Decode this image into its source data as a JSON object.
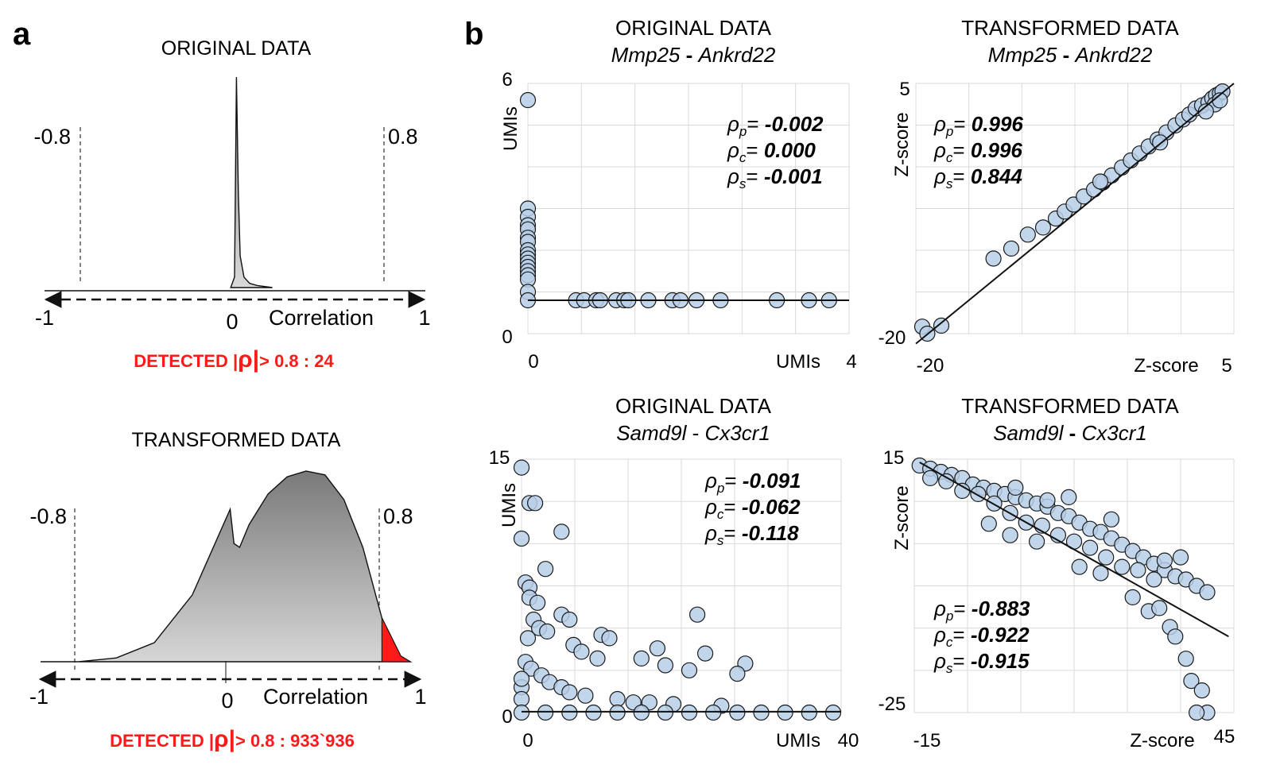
{
  "panel_letters": {
    "a": "a",
    "b": "b"
  },
  "colors": {
    "fill_dark": "#7a7a7a",
    "fill_light": "#d4d4d4",
    "highlight": "#ff1a1a",
    "point": "#b7cfe8",
    "point_stroke": "#1a1a1a",
    "grid": "#d9d9d9"
  },
  "panel_a": {
    "original": {
      "title": "ORIGINAL DATA",
      "neg_threshold": "-0.8",
      "pos_threshold": "0.8",
      "axis_min": "-1",
      "axis_zero": "0",
      "axis_label": "Correlation",
      "axis_max": "1",
      "detected": {
        "prefix": "DETECTED |",
        "rho": "ρ",
        "bar": "|",
        "suffix": "> 0.8 : 24"
      }
    },
    "transformed": {
      "title": "TRANSFORMED DATA",
      "neg_threshold": "-0.8",
      "pos_threshold": "0.8",
      "axis_min": "-1",
      "axis_zero": "0",
      "axis_label": "Correlation",
      "axis_max": "1",
      "detected": {
        "prefix": "DETECTED |",
        "rho": "ρ",
        "bar": "|",
        "suffix": "> 0.8 : 933`936"
      }
    }
  },
  "panel_b": [
    {
      "title": "ORIGINAL DATA",
      "gene1": "Mmp25",
      "sep": " - ",
      "gene2": "Ankrd22",
      "ylabel": "UMIs",
      "xlabel": "UMIs",
      "x_min_label": "0",
      "x_max_label": "4",
      "y_min_label": "0",
      "y_max_label": "6",
      "stats": [
        {
          "sub": "p",
          "value": "-0.002"
        },
        {
          "sub": "c",
          "value": "0.000"
        },
        {
          "sub": "s",
          "value": "-0.001"
        }
      ]
    },
    {
      "title": "TRANSFORMED DATA",
      "gene1": "Mmp25",
      "sep": " - ",
      "gene2": "Ankrd22",
      "ylabel": "Z-score",
      "xlabel": "Z-score",
      "x_min_label": "-20",
      "x_max_label": "5",
      "y_min_label": "-20",
      "y_max_label": "5",
      "stats": [
        {
          "sub": "p",
          "value": "0.996"
        },
        {
          "sub": "c",
          "value": "0.996"
        },
        {
          "sub": "s",
          "value": "0.844"
        }
      ]
    },
    {
      "title": "ORIGINAL DATA",
      "gene1": "Samd9l",
      "sep": " - ",
      "gene2": "Cx3cr1",
      "ylabel": "UMIs",
      "xlabel": "UMIs",
      "x_min_label": "0",
      "x_max_label": "40",
      "y_min_label": "0",
      "y_max_label": "15",
      "stats": [
        {
          "sub": "p",
          "value": "-0.091"
        },
        {
          "sub": "c",
          "value": "-0.062"
        },
        {
          "sub": "s",
          "value": "-0.118"
        }
      ]
    },
    {
      "title": "TRANSFORMED DATA",
      "gene1": "Samd9l",
      "sep": " - ",
      "gene2": "Cx3cr1",
      "ylabel": "Z-score",
      "xlabel": "Z-score",
      "x_min_label": "-15",
      "x_max_label": "45",
      "y_min_label": "-25",
      "y_max_label": "15",
      "stats": [
        {
          "sub": "p",
          "value": "-0.883"
        },
        {
          "sub": "c",
          "value": "-0.922"
        },
        {
          "sub": "s",
          "value": "-0.915"
        }
      ]
    }
  ],
  "chart_data": [
    {
      "type": "area",
      "title": "ORIGINAL DATA",
      "xlabel": "Correlation",
      "xlim": [
        -1,
        1
      ],
      "thresholds": [
        -0.8,
        0.8
      ],
      "x": [
        -0.02,
        0.0,
        0.01,
        0.02,
        0.03,
        0.05,
        0.08,
        0.12,
        0.2
      ],
      "y": [
        0,
        0.05,
        1.0,
        0.45,
        0.15,
        0.05,
        0.02,
        0.01,
        0
      ],
      "detected_above_threshold": 24
    },
    {
      "type": "area",
      "title": "TRANSFORMED DATA",
      "xlabel": "Correlation",
      "xlim": [
        -1,
        1
      ],
      "thresholds": [
        -0.8,
        0.8
      ],
      "x": [
        -1.0,
        -0.8,
        -0.6,
        -0.4,
        -0.2,
        0.0,
        0.02,
        0.05,
        0.1,
        0.2,
        0.3,
        0.4,
        0.5,
        0.6,
        0.7,
        0.8,
        0.9,
        0.95
      ],
      "y": [
        0,
        0,
        0.02,
        0.1,
        0.35,
        0.8,
        0.62,
        0.6,
        0.72,
        0.88,
        0.97,
        1.0,
        0.98,
        0.85,
        0.6,
        0.23,
        0.03,
        0
      ],
      "detected_above_threshold": 933936
    },
    {
      "type": "scatter",
      "title": "ORIGINAL DATA Mmp25 - Ankrd22",
      "xlabel": "UMIs",
      "ylabel": "UMIs",
      "xlim": [
        0,
        4
      ],
      "ylim": [
        0,
        6
      ],
      "points": [
        [
          0,
          5.6
        ],
        [
          0,
          3.0
        ],
        [
          0,
          2.8
        ],
        [
          0,
          2.6
        ],
        [
          0,
          2.5
        ],
        [
          0,
          2.3
        ],
        [
          0,
          2.2
        ],
        [
          0,
          2.0
        ],
        [
          0,
          1.9
        ],
        [
          0,
          1.8
        ],
        [
          0,
          1.7
        ],
        [
          0,
          1.6
        ],
        [
          0,
          1.5
        ],
        [
          0,
          1.4
        ],
        [
          0,
          1.3
        ],
        [
          0,
          1.0
        ],
        [
          0,
          0.8
        ],
        [
          0.6,
          0.8
        ],
        [
          0.7,
          0.8
        ],
        [
          0.85,
          0.8
        ],
        [
          0.9,
          0.8
        ],
        [
          1.1,
          0.8
        ],
        [
          1.2,
          0.8
        ],
        [
          1.25,
          0.8
        ],
        [
          1.5,
          0.8
        ],
        [
          1.8,
          0.8
        ],
        [
          1.9,
          0.8
        ],
        [
          2.1,
          0.8
        ],
        [
          2.4,
          0.8
        ],
        [
          3.1,
          0.8
        ],
        [
          3.5,
          0.8
        ],
        [
          3.75,
          0.8
        ]
      ],
      "fit": {
        "x": [
          0,
          4
        ],
        "y": [
          0.8,
          0.8
        ]
      },
      "rho_p": -0.002,
      "rho_c": 0.0,
      "rho_s": -0.001
    },
    {
      "type": "scatter",
      "title": "TRANSFORMED DATA Mmp25 - Ankrd22",
      "xlabel": "Z-score",
      "ylabel": "Z-score",
      "xlim": [
        -20,
        5
      ],
      "ylim": [
        -20,
        5
      ],
      "points": [
        [
          -19.5,
          -19.3
        ],
        [
          -19.1,
          -20.0
        ],
        [
          -18,
          -19.2
        ],
        [
          -13.9,
          -12.5
        ],
        [
          -12.5,
          -11.5
        ],
        [
          -11.2,
          -10.1
        ],
        [
          -10.0,
          -9.4
        ],
        [
          -9.0,
          -8.5
        ],
        [
          -8.3,
          -7.8
        ],
        [
          -7.6,
          -7.1
        ],
        [
          -6.8,
          -6.3
        ],
        [
          -6.0,
          -5.6
        ],
        [
          -5.3,
          -4.9
        ],
        [
          -4.6,
          -4.2
        ],
        [
          -3.8,
          -3.4
        ],
        [
          -3.1,
          -2.7
        ],
        [
          -2.4,
          -2.0
        ],
        [
          -1.7,
          -1.3
        ],
        [
          -1.0,
          -0.6
        ],
        [
          -0.3,
          0.1
        ],
        [
          0.4,
          0.8
        ],
        [
          1.0,
          1.4
        ],
        [
          1.5,
          1.9
        ],
        [
          2.0,
          2.5
        ],
        [
          2.5,
          2.8
        ],
        [
          3.0,
          3.1
        ],
        [
          3.3,
          3.5
        ],
        [
          3.6,
          3.8
        ],
        [
          3.9,
          4.0
        ],
        [
          4.1,
          4.2
        ],
        [
          3.5,
          2.9
        ],
        [
          3.9,
          3.3
        ],
        [
          2.8,
          2.2
        ],
        [
          -0.8,
          -0.9
        ],
        [
          -5.5,
          -4.8
        ]
      ],
      "fit": {
        "x": [
          -20,
          5
        ],
        "y": [
          -21,
          5
        ]
      },
      "rho_p": 0.996,
      "rho_c": 0.996,
      "rho_s": 0.844
    },
    {
      "type": "scatter",
      "title": "ORIGINAL DATA Samd9l - Cx3cr1",
      "xlabel": "UMIs",
      "ylabel": "UMIs",
      "xlim": [
        0,
        40
      ],
      "ylim": [
        0,
        15
      ],
      "points": [
        [
          0,
          14.5
        ],
        [
          1,
          12.4
        ],
        [
          1.7,
          12.4
        ],
        [
          0,
          10.3
        ],
        [
          5,
          10.7
        ],
        [
          3,
          8.5
        ],
        [
          0.5,
          7.7
        ],
        [
          1,
          7.4
        ],
        [
          1,
          6.8
        ],
        [
          2,
          6.5
        ],
        [
          5,
          5.8
        ],
        [
          6,
          5.5
        ],
        [
          22,
          5.8
        ],
        [
          1.5,
          5.5
        ],
        [
          2.2,
          5.0
        ],
        [
          3.2,
          4.8
        ],
        [
          0.8,
          4.4
        ],
        [
          10,
          4.6
        ],
        [
          11,
          4.4
        ],
        [
          6.5,
          4.0
        ],
        [
          7.5,
          3.6
        ],
        [
          9.5,
          3.2
        ],
        [
          15,
          3.2
        ],
        [
          17,
          3.8
        ],
        [
          23,
          3.5
        ],
        [
          18,
          2.8
        ],
        [
          28,
          2.9
        ],
        [
          21,
          2.5
        ],
        [
          27,
          2.3
        ],
        [
          0.5,
          3.0
        ],
        [
          1.2,
          2.6
        ],
        [
          2.5,
          2.2
        ],
        [
          3.5,
          1.8
        ],
        [
          5,
          1.5
        ],
        [
          6,
          1.2
        ],
        [
          8,
          1.0
        ],
        [
          12,
          0.8
        ],
        [
          14,
          0.6
        ],
        [
          16,
          0.6
        ],
        [
          19,
          0.5
        ],
        [
          25,
          0.4
        ],
        [
          0,
          1.5
        ],
        [
          0,
          2.0
        ],
        [
          0,
          0.8
        ],
        [
          0,
          0
        ],
        [
          3,
          0
        ],
        [
          6,
          0
        ],
        [
          9,
          0
        ],
        [
          12,
          0
        ],
        [
          15,
          0
        ],
        [
          18,
          0
        ],
        [
          21,
          0
        ],
        [
          24,
          0
        ],
        [
          27,
          0
        ],
        [
          30,
          0
        ],
        [
          33,
          0
        ],
        [
          36,
          0
        ],
        [
          39,
          0
        ]
      ],
      "fit": {
        "x": [
          0,
          40
        ],
        "y": [
          0.05,
          0.05
        ]
      },
      "rho_p": -0.091,
      "rho_c": -0.062,
      "rho_s": -0.118
    },
    {
      "type": "scatter",
      "title": "TRANSFORMED DATA Samd9l - Cx3cr1",
      "xlabel": "Z-score",
      "ylabel": "Z-score",
      "xlim": [
        -15,
        45
      ],
      "ylim": [
        -25,
        15
      ],
      "points": [
        [
          -14,
          14.0
        ],
        [
          -12,
          13.5
        ],
        [
          -10,
          13.0
        ],
        [
          -8,
          12.5
        ],
        [
          -6,
          12.0
        ],
        [
          -4,
          11.0
        ],
        [
          -2,
          10.5
        ],
        [
          0,
          10.0
        ],
        [
          2,
          9.5
        ],
        [
          4,
          9.0
        ],
        [
          6,
          8.5
        ],
        [
          8,
          8.0
        ],
        [
          10,
          7.5
        ],
        [
          12,
          6.5
        ],
        [
          14,
          6.0
        ],
        [
          16,
          5.0
        ],
        [
          18,
          4.0
        ],
        [
          20,
          3.5
        ],
        [
          22,
          2.5
        ],
        [
          24,
          1.5
        ],
        [
          26,
          0.5
        ],
        [
          28,
          -0.5
        ],
        [
          30,
          -1.5
        ],
        [
          32,
          -2.5
        ],
        [
          34,
          -3.5
        ],
        [
          36,
          -4.0
        ],
        [
          38,
          -5.0
        ],
        [
          40,
          -6.0
        ],
        [
          -12,
          12.0
        ],
        [
          -9,
          11.5
        ],
        [
          -6,
          10.0
        ],
        [
          -3,
          9.5
        ],
        [
          0,
          8.0
        ],
        [
          3,
          6.5
        ],
        [
          6,
          5.0
        ],
        [
          9,
          4.5
        ],
        [
          12,
          3.0
        ],
        [
          15,
          2.0
        ],
        [
          18,
          1.0
        ],
        [
          21,
          -0.5
        ],
        [
          24,
          -2.0
        ],
        [
          27,
          -2.5
        ],
        [
          30,
          -4.0
        ],
        [
          -1,
          4.8
        ],
        [
          3,
          3.0
        ],
        [
          8,
          2.0
        ],
        [
          16,
          -2.0
        ],
        [
          20,
          -3.0
        ],
        [
          26,
          -6.8
        ],
        [
          33,
          -11.5
        ],
        [
          34,
          -13.0
        ],
        [
          36,
          -16.5
        ],
        [
          37,
          -20.0
        ],
        [
          39,
          -21.5
        ],
        [
          40,
          -25.0
        ],
        [
          38,
          -25.0
        ],
        [
          29,
          -9.0
        ],
        [
          31,
          -8.5
        ],
        [
          10,
          8.5
        ],
        [
          4,
          10.5
        ],
        [
          14,
          9.0
        ],
        [
          22,
          5.5
        ],
        [
          32,
          -1.0
        ],
        [
          35,
          -0.5
        ]
      ],
      "fit": {
        "x": [
          -14,
          44
        ],
        "y": [
          14.5,
          -13.0
        ]
      },
      "rho_p": -0.883,
      "rho_c": -0.922,
      "rho_s": -0.915
    }
  ]
}
